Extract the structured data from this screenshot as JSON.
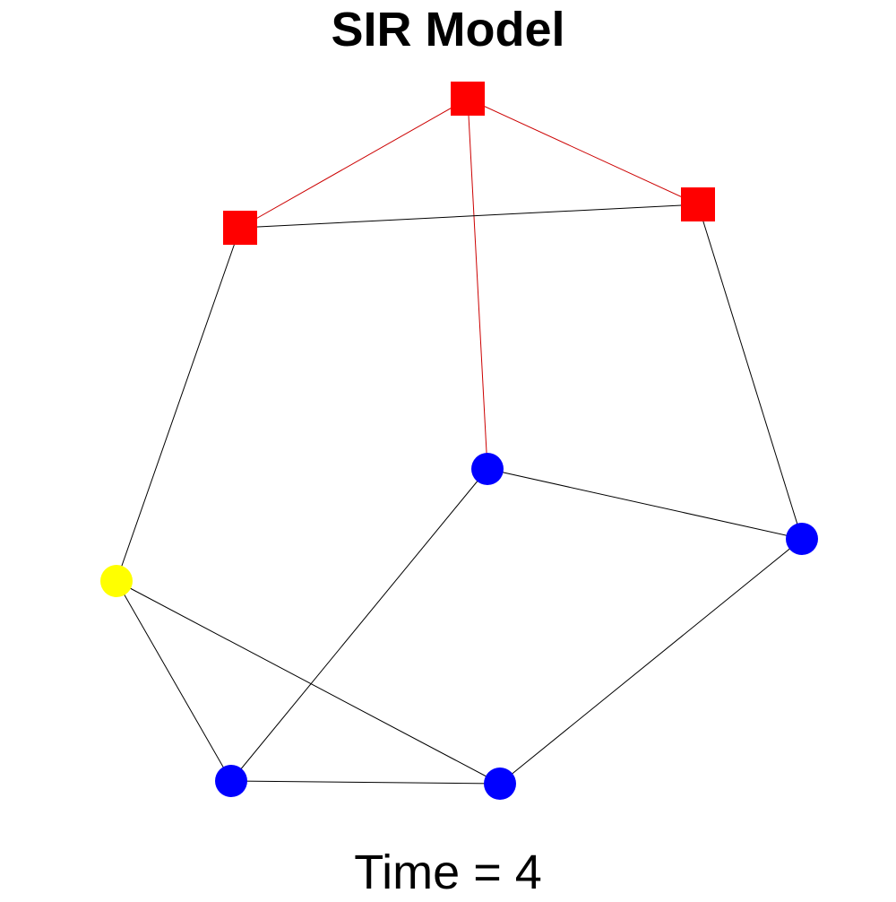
{
  "title": "SIR Model",
  "caption": {
    "label": "Time = ",
    "value": "4"
  },
  "colors": {
    "susceptible": "#0000ff",
    "infected": "#ff0000",
    "recovered": "#ffff00",
    "infected_edge": "#cc0000",
    "edge": "#000000"
  },
  "graph": {
    "nodes": [
      {
        "id": "n1",
        "state": "infected",
        "shape": "square"
      },
      {
        "id": "n2",
        "state": "infected",
        "shape": "square"
      },
      {
        "id": "n3",
        "state": "infected",
        "shape": "square"
      },
      {
        "id": "n4",
        "state": "susceptible",
        "shape": "circle"
      },
      {
        "id": "n5",
        "state": "susceptible",
        "shape": "circle"
      },
      {
        "id": "n6",
        "state": "recovered",
        "shape": "circle"
      },
      {
        "id": "n7",
        "state": "susceptible",
        "shape": "circle"
      },
      {
        "id": "n8",
        "state": "susceptible",
        "shape": "circle"
      }
    ],
    "edges": [
      {
        "from": "n1",
        "to": "n2",
        "type": "infected"
      },
      {
        "from": "n1",
        "to": "n3",
        "type": "infected"
      },
      {
        "from": "n1",
        "to": "n4",
        "type": "infected"
      },
      {
        "from": "n2",
        "to": "n3",
        "type": "normal"
      },
      {
        "from": "n2",
        "to": "n6",
        "type": "normal"
      },
      {
        "from": "n3",
        "to": "n5",
        "type": "normal"
      },
      {
        "from": "n4",
        "to": "n5",
        "type": "normal"
      },
      {
        "from": "n4",
        "to": "n7",
        "type": "normal"
      },
      {
        "from": "n5",
        "to": "n8",
        "type": "normal"
      },
      {
        "from": "n6",
        "to": "n7",
        "type": "normal"
      },
      {
        "from": "n6",
        "to": "n8",
        "type": "normal"
      },
      {
        "from": "n7",
        "to": "n8",
        "type": "normal"
      }
    ]
  }
}
